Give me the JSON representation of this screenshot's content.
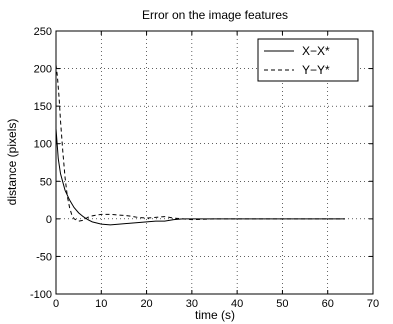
{
  "chart_data": {
    "type": "line",
    "title": "Error on the image features",
    "xlabel": "time (s)",
    "ylabel": "distance (pixels)",
    "xlim": [
      0,
      70
    ],
    "ylim": [
      -100,
      250
    ],
    "xticks": [
      0,
      10,
      20,
      30,
      40,
      50,
      60,
      70
    ],
    "yticks": [
      -100,
      -50,
      0,
      50,
      100,
      150,
      200,
      250
    ],
    "grid": "dotted",
    "legend_position": "top-right",
    "series": [
      {
        "name": "X−X*",
        "style": "solid",
        "color": "#000000",
        "x": [
          0,
          0.5,
          1,
          2,
          3,
          4,
          5,
          6,
          7,
          8,
          10,
          12,
          14,
          16,
          18,
          20,
          22,
          24,
          26,
          28,
          30,
          35,
          40,
          45,
          50,
          55,
          60,
          63.8
        ],
        "y": [
          120,
          80,
          60,
          38,
          25,
          15,
          8,
          3,
          -1,
          -4,
          -7,
          -8,
          -7,
          -6,
          -5,
          -4,
          -3,
          -3,
          -1,
          0,
          0,
          0,
          0,
          0,
          0,
          0,
          0,
          0
        ]
      },
      {
        "name": "Y−Y*",
        "style": "dashed",
        "color": "#000000",
        "x": [
          0,
          0.3,
          0.7,
          1,
          1.5,
          2,
          2.5,
          3,
          3.5,
          4,
          5,
          6,
          7,
          8,
          9,
          10,
          12,
          14,
          16,
          18,
          20,
          22,
          24,
          26,
          28,
          30,
          35,
          40,
          45,
          50,
          55,
          60,
          63.8
        ],
        "y": [
          205,
          190,
          160,
          130,
          90,
          55,
          30,
          15,
          5,
          0,
          -3,
          -2,
          2,
          4,
          5,
          6,
          6,
          5,
          4,
          2,
          1,
          2,
          3,
          1,
          0,
          -1,
          0,
          0,
          0,
          0,
          0,
          0,
          0
        ]
      }
    ]
  }
}
